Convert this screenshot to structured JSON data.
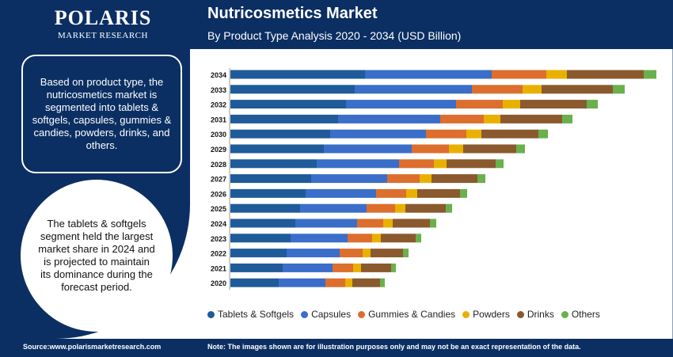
{
  "brand": {
    "name": "POLARIS",
    "tagline": "MARKET RESEARCH"
  },
  "header": {
    "title": "Nutricosmetics Market",
    "subtitle": "By Product Type Analysis 2020 - 2034 (USD Billion)"
  },
  "sidebar": {
    "info_text": "Based on product type, the nutricosmetics market is segmented into tablets & softgels, capsules, gummies & candies, powders, drinks, and others.",
    "highlight_text": "The tablets & softgels segment held the largest market share in 2024 and is projected to maintain its dominance during the forecast period."
  },
  "footer": {
    "source": "Source:www.polarismarketresearch.com",
    "note": "Note: The images shown are for illustration purposes only and may not be an exact representation of the data."
  },
  "colors": {
    "navy": "#0b2f63",
    "Tablets & Softgels": "#1f5b99",
    "Capsules": "#3a6ec9",
    "Gummies & Candies": "#dc6e2e",
    "Powders": "#e8b100",
    "Drinks": "#8a5a2e",
    "Others": "#6ab04c"
  },
  "chart_data": {
    "type": "bar",
    "orientation": "horizontal",
    "stacked": true,
    "title": "Nutricosmetics Market",
    "subtitle": "By Product Type Analysis 2020 - 2034 (USD Billion)",
    "xlabel": "",
    "ylabel": "",
    "categories": [
      "2034",
      "2033",
      "2032",
      "2031",
      "2030",
      "2029",
      "2028",
      "2027",
      "2026",
      "2025",
      "2024",
      "2023",
      "2022",
      "2021",
      "2020"
    ],
    "series": [
      {
        "name": "Tablets & Softgels",
        "values": [
          170,
          157,
          146,
          136,
          126,
          118,
          109,
          102,
          95,
          88,
          82,
          76,
          71,
          66,
          61
        ]
      },
      {
        "name": "Capsules",
        "values": [
          160,
          148,
          139,
          129,
          121,
          111,
          104,
          96,
          89,
          84,
          78,
          72,
          67,
          63,
          59
        ]
      },
      {
        "name": "Gummies & Candies",
        "values": [
          69,
          64,
          59,
          55,
          51,
          47,
          44,
          41,
          38,
          36,
          33,
          31,
          29,
          26,
          25
        ]
      },
      {
        "name": "Powders",
        "values": [
          26,
          24,
          22,
          21,
          19,
          18,
          16,
          15,
          14,
          13,
          12,
          11,
          10,
          10,
          9
        ]
      },
      {
        "name": "Drinks",
        "values": [
          97,
          90,
          84,
          78,
          72,
          67,
          62,
          58,
          54,
          51,
          47,
          44,
          41,
          38,
          35
        ]
      },
      {
        "name": "Others",
        "values": [
          16,
          15,
          14,
          13,
          12,
          11,
          10,
          10,
          9,
          8,
          8,
          7,
          7,
          6,
          6
        ]
      }
    ],
    "legend_position": "bottom",
    "grid": false,
    "xlim": [
      0,
      540
    ]
  }
}
